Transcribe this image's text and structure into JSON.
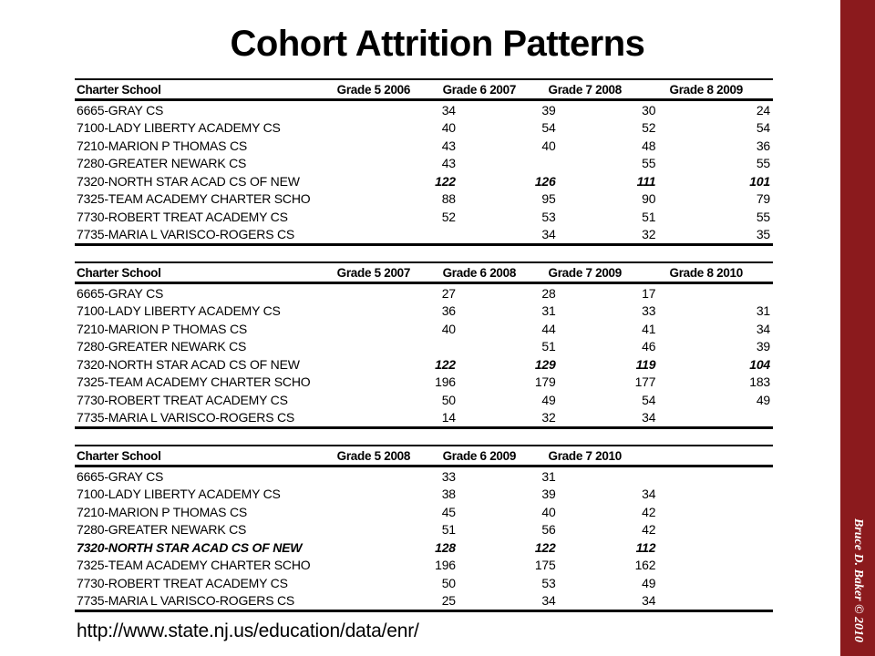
{
  "slide": {
    "title": "Cohort Attrition Patterns",
    "source_url": "http://www.state.nj.us/education/data/enr/",
    "credit": "Bruce D. Baker © 2010"
  },
  "colors": {
    "background": "#ffffff",
    "text": "#000000",
    "accent_bar": "#8b1a1d"
  },
  "chart_data": [
    {
      "type": "table",
      "columns": [
        "Charter School",
        "Grade 5 2006",
        "Grade 6 2007",
        "Grade 7 2008",
        "Grade 8 2009"
      ],
      "rows": [
        {
          "name": "6665-GRAY CS",
          "values": [
            "34",
            "39",
            "30",
            "24"
          ],
          "emphasis": "none"
        },
        {
          "name": "7100-LADY LIBERTY ACADEMY CS",
          "values": [
            "40",
            "54",
            "52",
            "54"
          ],
          "emphasis": "none"
        },
        {
          "name": "7210-MARION P THOMAS CS",
          "values": [
            "43",
            "40",
            "48",
            "36"
          ],
          "emphasis": "none"
        },
        {
          "name": "7280-GREATER NEWARK CS",
          "values": [
            "43",
            "",
            "55",
            "55"
          ],
          "emphasis": "none"
        },
        {
          "name": "7320-NORTH STAR ACAD CS OF NEW",
          "values": [
            "122",
            "126",
            "111",
            "101"
          ],
          "emphasis": "values"
        },
        {
          "name": "7325-TEAM ACADEMY CHARTER SCHO",
          "values": [
            "88",
            "95",
            "90",
            "79"
          ],
          "emphasis": "none"
        },
        {
          "name": "7730-ROBERT TREAT ACADEMY CS",
          "values": [
            "52",
            "53",
            "51",
            "55"
          ],
          "emphasis": "none"
        },
        {
          "name": "7735-MARIA L VARISCO-ROGERS CS",
          "values": [
            "",
            "34",
            "32",
            "35"
          ],
          "emphasis": "none"
        }
      ]
    },
    {
      "type": "table",
      "columns": [
        "Charter School",
        "Grade 5 2007",
        "Grade 6 2008",
        "Grade 7 2009",
        "Grade 8 2010"
      ],
      "rows": [
        {
          "name": "6665-GRAY CS",
          "values": [
            "27",
            "28",
            "17",
            ""
          ],
          "emphasis": "none"
        },
        {
          "name": "7100-LADY LIBERTY ACADEMY CS",
          "values": [
            "36",
            "31",
            "33",
            "31"
          ],
          "emphasis": "none"
        },
        {
          "name": "7210-MARION P THOMAS CS",
          "values": [
            "40",
            "44",
            "41",
            "34"
          ],
          "emphasis": "none"
        },
        {
          "name": "7280-GREATER NEWARK CS",
          "values": [
            "",
            "51",
            "46",
            "39"
          ],
          "emphasis": "none"
        },
        {
          "name": "7320-NORTH STAR ACAD CS OF NEW",
          "values": [
            "122",
            "129",
            "119",
            "104"
          ],
          "emphasis": "values"
        },
        {
          "name": "7325-TEAM ACADEMY CHARTER SCHO",
          "values": [
            "196",
            "179",
            "177",
            "183"
          ],
          "emphasis": "none"
        },
        {
          "name": "7730-ROBERT TREAT ACADEMY CS",
          "values": [
            "50",
            "49",
            "54",
            "49"
          ],
          "emphasis": "none"
        },
        {
          "name": "7735-MARIA L VARISCO-ROGERS CS",
          "values": [
            "14",
            "32",
            "34",
            ""
          ],
          "emphasis": "none"
        }
      ]
    },
    {
      "type": "table",
      "columns": [
        "Charter School",
        "Grade 5 2008",
        "Grade 6 2009",
        "Grade 7 2010",
        ""
      ],
      "rows": [
        {
          "name": "6665-GRAY CS",
          "values": [
            "33",
            "31",
            "",
            ""
          ],
          "emphasis": "none"
        },
        {
          "name": "7100-LADY LIBERTY ACADEMY CS",
          "values": [
            "38",
            "39",
            "34",
            ""
          ],
          "emphasis": "none"
        },
        {
          "name": "7210-MARION P THOMAS CS",
          "values": [
            "45",
            "40",
            "42",
            ""
          ],
          "emphasis": "none"
        },
        {
          "name": "7280-GREATER NEWARK CS",
          "values": [
            "51",
            "56",
            "42",
            ""
          ],
          "emphasis": "none"
        },
        {
          "name": "7320-NORTH STAR ACAD CS OF NEW",
          "values": [
            "128",
            "122",
            "112",
            ""
          ],
          "emphasis": "row"
        },
        {
          "name": "7325-TEAM ACADEMY CHARTER SCHO",
          "values": [
            "196",
            "175",
            "162",
            ""
          ],
          "emphasis": "none"
        },
        {
          "name": "7730-ROBERT TREAT ACADEMY CS",
          "values": [
            "50",
            "53",
            "49",
            ""
          ],
          "emphasis": "none"
        },
        {
          "name": "7735-MARIA L VARISCO-ROGERS CS",
          "values": [
            "25",
            "34",
            "34",
            ""
          ],
          "emphasis": "none"
        }
      ]
    }
  ]
}
